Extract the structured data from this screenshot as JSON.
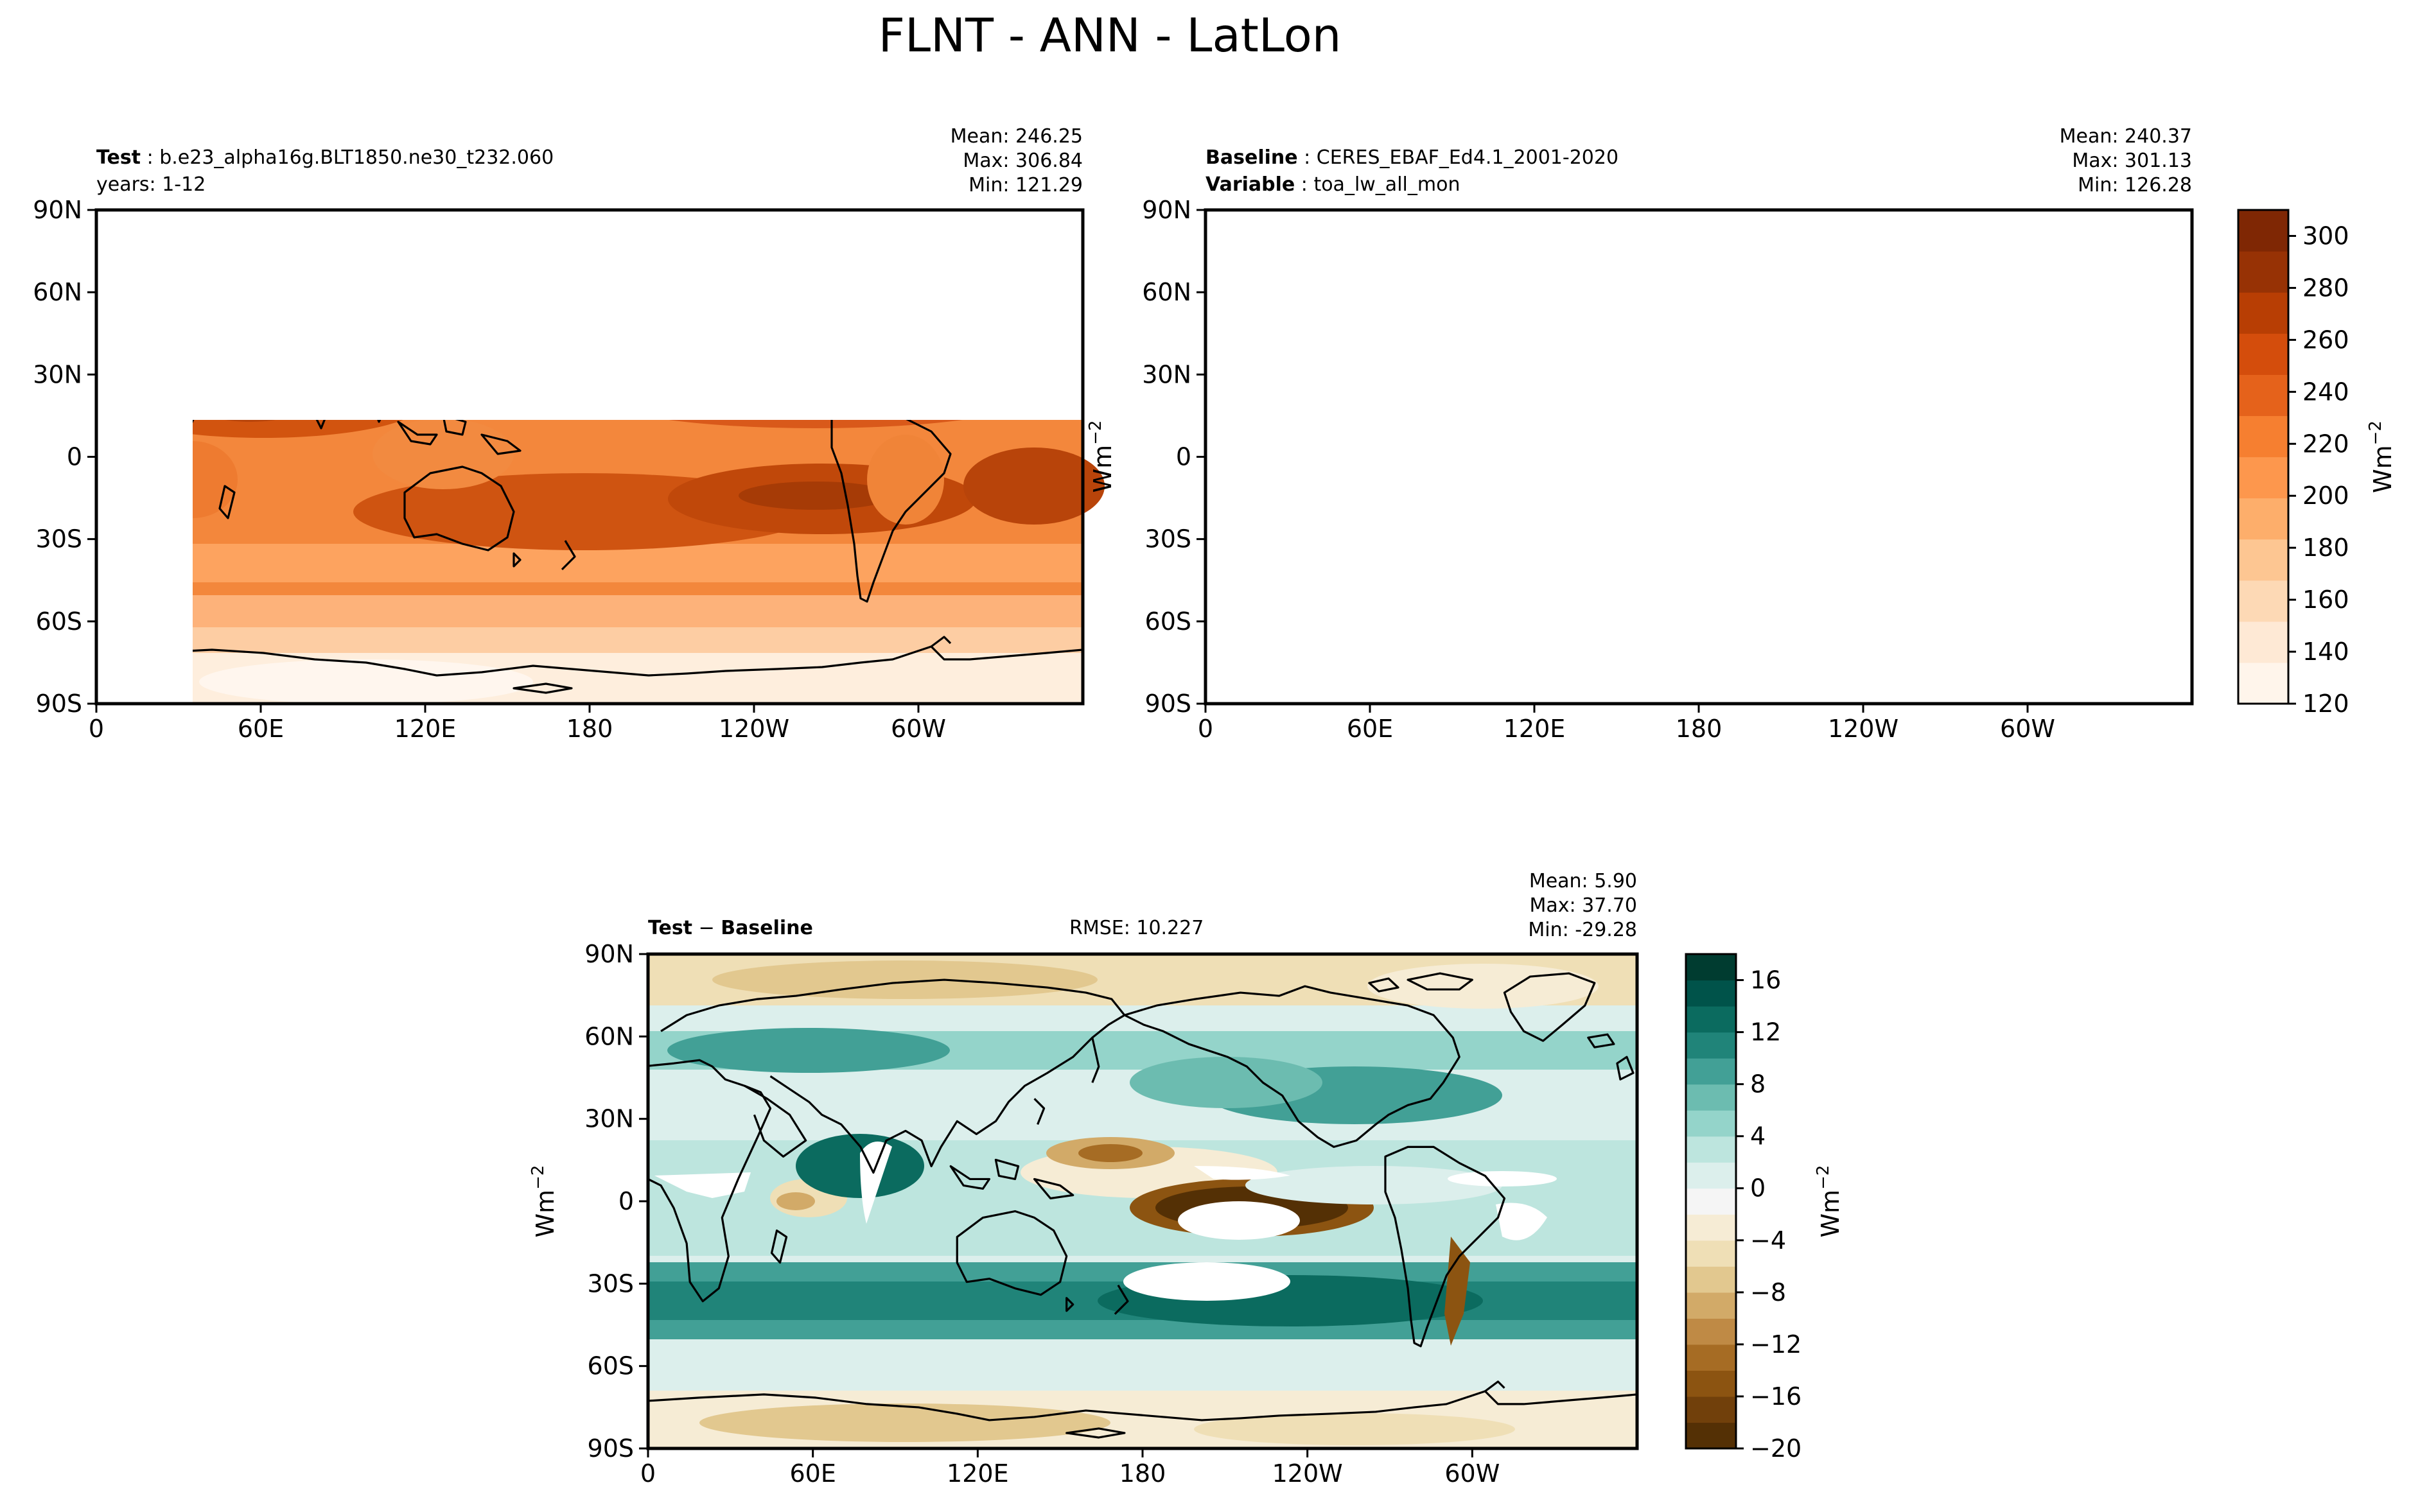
{
  "figure_title": "FLNT - ANN - LatLon",
  "chart_data": [
    {
      "type": "heatmap",
      "panel": "test",
      "label_bold": "Test",
      "label_text": "b.e23_alpha16g.BLT1850.ne30_t232.060",
      "label_line2": "years: 1-12",
      "stats": [
        "Mean: 246.25",
        "Max: 306.84",
        "Min: 121.29"
      ],
      "xticks": [
        "0",
        "60E",
        "120E",
        "180",
        "120W",
        "60W"
      ],
      "yticks": [
        "90N",
        "60N",
        "30N",
        "0",
        "30S",
        "60S",
        "90S"
      ],
      "xlim": [
        0,
        360
      ],
      "ylim": [
        -90,
        90
      ],
      "colormap": "Oranges",
      "units": "Wm-2",
      "mean": 246.25,
      "max": 306.84,
      "min": 121.29
    },
    {
      "type": "heatmap",
      "panel": "baseline",
      "label_bold": "Baseline",
      "label_text": "CERES_EBAF_Ed4.1_2001-2020",
      "label2_bold": "Variable",
      "label2_text": "toa_lw_all_mon",
      "stats": [
        "Mean: 240.37",
        "Max: 301.13",
        "Min: 126.28"
      ],
      "xticks": [
        "0",
        "60E",
        "120E",
        "180",
        "120W",
        "60W"
      ],
      "yticks": [
        "90N",
        "60N",
        "30N",
        "0",
        "30S",
        "60S",
        "90S"
      ],
      "xlim": [
        0,
        360
      ],
      "ylim": [
        -90,
        90
      ],
      "colormap": "Oranges",
      "units": "Wm-2",
      "mean": 240.37,
      "max": 301.13,
      "min": 126.28,
      "colorbar": {
        "ticks": [
          "120",
          "140",
          "160",
          "180",
          "200",
          "220",
          "240",
          "260",
          "280",
          "300"
        ],
        "range": [
          120,
          310
        ],
        "label": "Wm",
        "label_sup": "−2",
        "colors": [
          "#fff5eb",
          "#fee9d5",
          "#fdd9b5",
          "#fdc692",
          "#fdae6b",
          "#fd974d",
          "#f67f30",
          "#e5621b",
          "#d44d0c",
          "#b83e04",
          "#973205",
          "#7f2704"
        ]
      }
    },
    {
      "type": "heatmap",
      "panel": "difference",
      "label_bold": "Test",
      "label_mid": " − ",
      "label_bold2": "Baseline",
      "rmse": "RMSE: 10.227",
      "stats": [
        "Mean:  5.90",
        "Max: 37.70",
        "Min: -29.28"
      ],
      "xticks": [
        "0",
        "60E",
        "120E",
        "180",
        "120W",
        "60W"
      ],
      "yticks": [
        "90N",
        "60N",
        "30N",
        "0",
        "30S",
        "60S",
        "90S"
      ],
      "xlim": [
        0,
        360
      ],
      "ylim": [
        -90,
        90
      ],
      "colormap": "BrBG",
      "units": "Wm-2",
      "mean": 5.9,
      "max": 37.7,
      "min": -29.28,
      "colorbar": {
        "ticks": [
          "16",
          "12",
          "8",
          "4",
          "0",
          "−4",
          "−8",
          "−12",
          "−16",
          "−20"
        ],
        "range": [
          -20,
          18
        ],
        "label": "Wm",
        "label_sup": "−2",
        "colors": [
          "#543005",
          "#71400b",
          "#8c5411",
          "#a66c24",
          "#bf8a45",
          "#d2aa68",
          "#e2c88f",
          "#efdfb6",
          "#f6ecd5",
          "#f5f5f5",
          "#dcefec",
          "#bde5de",
          "#94d4ca",
          "#6cbcb0",
          "#42a096",
          "#208479",
          "#0b6b5f",
          "#00534a",
          "#003c30"
        ]
      }
    }
  ],
  "ylabel_mid": "Wm",
  "ylabel_mid_sup": "−2",
  "ylabel_diff": "Wm",
  "ylabel_diff_sup": "−2"
}
